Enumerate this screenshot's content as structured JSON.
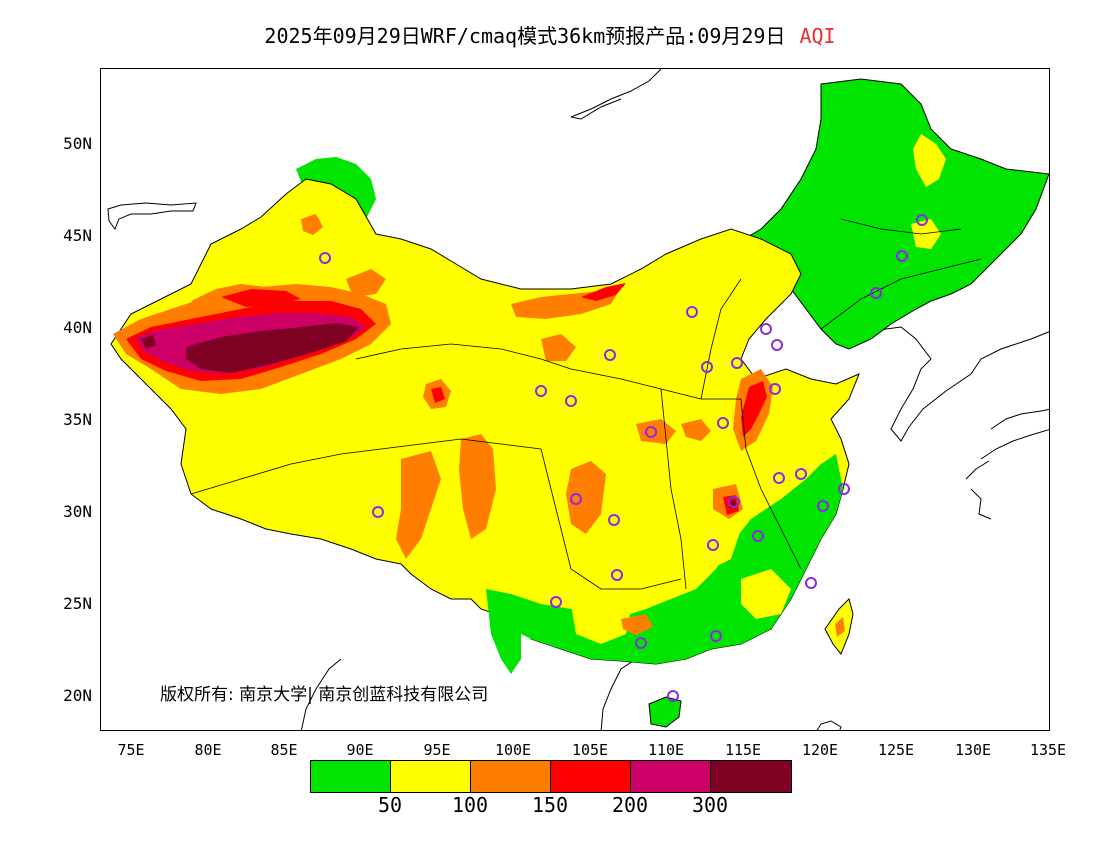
{
  "header": {
    "title": "2025年09月29日WRF/cmaq模式36km预报产品:09月29日",
    "variable": "AQI",
    "variable_color": "#e83030"
  },
  "axes": {
    "lat_labels": [
      "50N",
      "45N",
      "40N",
      "35N",
      "30N",
      "25N",
      "20N"
    ],
    "lon_labels": [
      "75E",
      "80E",
      "85E",
      "90E",
      "95E",
      "100E",
      "105E",
      "110E",
      "115E",
      "120E",
      "125E",
      "130E",
      "135E"
    ]
  },
  "copyright": "版权所有: 南京大学| 南京创蓝科技有限公司",
  "legend": {
    "colors": [
      "#00e400",
      "#ffff00",
      "#ff7e00",
      "#ff0000",
      "#cc0066",
      "#7e0023"
    ],
    "breaks": [
      "50",
      "100",
      "150",
      "200",
      "300"
    ]
  },
  "map": {
    "colors": {
      "good": "#00e400",
      "moderate": "#ffff00",
      "usg": "#ff7e00",
      "unhealthy": "#ff0000",
      "very_unhealthy": "#cc0066",
      "hazardous": "#7e0023",
      "city_marker": "#8a2be2"
    }
  }
}
